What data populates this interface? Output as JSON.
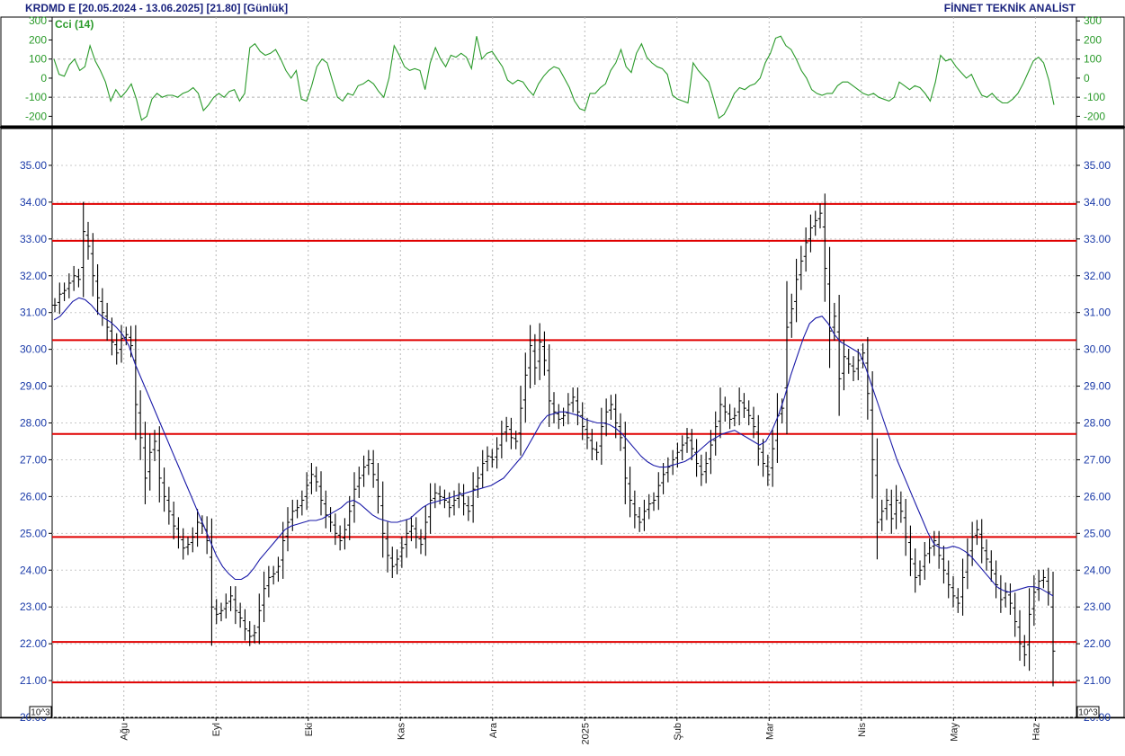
{
  "header": {
    "left_title": "KRDMD E  [20.05.2024 - 13.06.2025]  [21.80]  [Günlük]",
    "right_title": "FİNNET TEKNİK ANALİST"
  },
  "colors": {
    "price_bars": "#000000",
    "moving_average": "#1a1aa8",
    "cci_line": "#2a9a2a",
    "horizontal_levels": "#e00000",
    "axis_labels": "#1a3aa8"
  },
  "chart_data": [
    {
      "type": "line",
      "title": "",
      "legend": [
        "Cci (14)"
      ],
      "ylim": [
        -250,
        320
      ],
      "yticks": [
        "300",
        "200",
        "100",
        "0",
        "-100",
        "-200"
      ],
      "ytick_values": [
        300,
        200,
        100,
        0,
        -100,
        -200
      ],
      "grid": true,
      "series": [
        {
          "name": "Cci (14)",
          "values": [
            100,
            20,
            10,
            70,
            100,
            40,
            60,
            170,
            90,
            40,
            -20,
            -120,
            -60,
            -100,
            -70,
            -30,
            -110,
            -220,
            -200,
            -110,
            -80,
            -100,
            -90,
            -90,
            -100,
            -80,
            -70,
            -50,
            -80,
            -170,
            -140,
            -100,
            -80,
            -100,
            -70,
            -60,
            -120,
            -80,
            160,
            180,
            140,
            120,
            130,
            150,
            100,
            40,
            0,
            40,
            -110,
            -120,
            -40,
            60,
            100,
            80,
            -10,
            -100,
            -120,
            -80,
            -90,
            -40,
            -30,
            -10,
            -30,
            -70,
            -100,
            0,
            170,
            120,
            60,
            40,
            50,
            40,
            -60,
            80,
            160,
            100,
            60,
            120,
            110,
            130,
            110,
            50,
            220,
            100,
            130,
            140,
            100,
            60,
            -10,
            -30,
            -10,
            -20,
            -60,
            -90,
            -30,
            10,
            40,
            60,
            50,
            0,
            -50,
            -120,
            -160,
            -170,
            -80,
            -80,
            -50,
            -30,
            40,
            80,
            150,
            60,
            30,
            130,
            180,
            110,
            80,
            60,
            50,
            20,
            -90,
            -110,
            -120,
            -130,
            80,
            40,
            10,
            -20,
            -110,
            -210,
            -190,
            -140,
            -80,
            -50,
            -60,
            -40,
            -30,
            0,
            80,
            130,
            210,
            220,
            170,
            150,
            100,
            40,
            0,
            -60,
            -80,
            -90,
            -80,
            -80,
            -40,
            -20,
            -20,
            -40,
            -60,
            -80,
            -90,
            -80,
            -100,
            -110,
            -120,
            -100,
            -20,
            -40,
            -60,
            -40,
            -50,
            -80,
            -120,
            -20,
            120,
            90,
            100,
            60,
            30,
            0,
            20,
            -40,
            -90,
            -100,
            -80,
            -110,
            -130,
            -130,
            -110,
            -80,
            -30,
            30,
            90,
            110,
            80,
            -10,
            -140
          ]
        }
      ]
    },
    {
      "type": "ohlc",
      "title": "",
      "ylim": [
        20,
        36
      ],
      "yticks": [
        "35.00",
        "34.00",
        "33.00",
        "32.00",
        "31.00",
        "30.00",
        "29.00",
        "28.00",
        "27.00",
        "26.00",
        "25.00",
        "24.00",
        "23.00",
        "22.00",
        "21.00",
        "20.00"
      ],
      "ytick_values": [
        35,
        34,
        33,
        32,
        31,
        30,
        29,
        28,
        27,
        26,
        25,
        24,
        23,
        22,
        21,
        20
      ],
      "scale_label": "10^3",
      "x_range": [
        "20.05.2024",
        "13.06.2025"
      ],
      "xticks": [
        "Ağu",
        "Eyl",
        "Eki",
        "Kas",
        "Ara",
        "2025",
        "Şub",
        "Mar",
        "Nis",
        "May",
        "Haz"
      ],
      "horizontal_levels": [
        33.95,
        32.95,
        30.25,
        27.7,
        24.9,
        22.05,
        20.95
      ],
      "grid": true,
      "series": [
        {
          "name": "Close",
          "values": [
            31.2,
            31.5,
            31.6,
            31.8,
            32.0,
            31.9,
            33.2,
            32.8,
            32.0,
            31.4,
            31.0,
            30.6,
            30.2,
            29.9,
            30.3,
            30.4,
            30.1,
            28.5,
            27.6,
            26.5,
            27.2,
            27.5,
            26.5,
            26.0,
            25.6,
            25.2,
            24.9,
            24.6,
            24.7,
            24.9,
            25.3,
            25.2,
            24.8,
            23.0,
            22.8,
            22.9,
            23.1,
            23.3,
            22.9,
            22.7,
            22.4,
            22.2,
            22.3,
            22.9,
            23.5,
            23.8,
            23.9,
            24.1,
            24.8,
            25.3,
            25.6,
            25.7,
            25.9,
            26.3,
            26.6,
            26.4,
            25.9,
            25.5,
            25.3,
            25.0,
            24.8,
            25.1,
            25.6,
            26.2,
            26.5,
            26.8,
            27.0,
            26.6,
            26.0,
            25.0,
            24.4,
            24.1,
            24.3,
            24.6,
            25.0,
            25.2,
            24.9,
            24.7,
            25.3,
            25.9,
            26.1,
            26.0,
            25.9,
            25.7,
            25.9,
            26.1,
            25.8,
            25.6,
            26.2,
            26.5,
            26.9,
            27.1,
            27.0,
            27.3,
            27.7,
            27.9,
            27.6,
            27.5,
            28.4,
            29.3,
            30.1,
            29.5,
            30.2,
            29.7,
            28.6,
            28.3,
            28.1,
            28.2,
            28.5,
            28.7,
            28.3,
            27.9,
            27.6,
            27.3,
            27.2,
            27.9,
            28.3,
            28.5,
            28.0,
            27.6,
            26.5,
            25.9,
            25.5,
            25.3,
            25.6,
            25.8,
            25.9,
            26.3,
            26.6,
            26.8,
            27.0,
            27.2,
            27.4,
            27.6,
            27.3,
            26.9,
            26.6,
            26.9,
            27.4,
            27.9,
            28.5,
            28.3,
            28.1,
            28.2,
            28.6,
            28.4,
            28.2,
            27.9,
            27.3,
            26.9,
            26.6,
            27.3,
            28.2,
            28.4,
            30.6,
            31.1,
            31.9,
            32.4,
            32.9,
            33.3,
            33.5,
            33.7,
            32.2,
            30.5,
            30.9,
            29.2,
            29.8,
            29.6,
            29.4,
            29.7,
            29.9,
            28.8,
            27.0,
            25.3,
            25.6,
            25.9,
            25.4,
            25.9,
            25.6,
            24.9,
            24.3,
            23.8,
            24.0,
            24.4,
            24.6,
            24.8,
            24.4,
            24.0,
            23.6,
            23.3,
            23.1,
            23.8,
            24.4,
            24.9,
            25.1,
            24.6,
            24.3,
            24.0,
            23.6,
            23.2,
            23.4,
            23.1,
            22.6,
            22.0,
            21.7,
            22.8,
            23.4,
            23.7,
            23.8,
            23.4,
            21.8
          ]
        },
        {
          "name": "MA",
          "values": [
            30.8,
            30.9,
            31.1,
            31.3,
            31.4,
            31.35,
            31.2,
            31.0,
            30.85,
            30.75,
            30.6,
            30.4,
            30.1,
            29.6,
            29.2,
            28.8,
            28.4,
            28.0,
            27.6,
            27.2,
            26.8,
            26.4,
            26.0,
            25.6,
            25.2,
            24.8,
            24.4,
            24.1,
            23.9,
            23.75,
            23.75,
            23.85,
            24.05,
            24.3,
            24.5,
            24.7,
            24.9,
            25.1,
            25.2,
            25.25,
            25.3,
            25.35,
            25.35,
            25.4,
            25.5,
            25.6,
            25.7,
            25.85,
            25.9,
            25.8,
            25.65,
            25.5,
            25.4,
            25.35,
            25.3,
            25.3,
            25.35,
            25.4,
            25.55,
            25.7,
            25.8,
            25.85,
            25.9,
            25.95,
            26.0,
            26.05,
            26.1,
            26.15,
            26.2,
            26.25,
            26.3,
            26.4,
            26.5,
            26.7,
            26.9,
            27.1,
            27.4,
            27.7,
            28.0,
            28.2,
            28.25,
            28.3,
            28.3,
            28.25,
            28.2,
            28.1,
            28.05,
            28.0,
            28.0,
            27.95,
            27.85,
            27.7,
            27.5,
            27.3,
            27.1,
            26.95,
            26.85,
            26.8,
            26.8,
            26.85,
            26.9,
            26.95,
            27.05,
            27.2,
            27.35,
            27.5,
            27.6,
            27.7,
            27.75,
            27.8,
            27.7,
            27.6,
            27.5,
            27.4,
            27.5,
            27.8,
            28.2,
            28.7,
            29.3,
            29.8,
            30.3,
            30.7,
            30.85,
            30.9,
            30.7,
            30.4,
            30.2,
            30.1,
            30.0,
            29.9,
            29.5,
            29.0,
            28.5,
            28.0,
            27.5,
            27.0,
            26.6,
            26.2,
            25.8,
            25.4,
            25.0,
            24.7,
            24.6,
            24.6,
            24.65,
            24.6,
            24.5,
            24.35,
            24.15,
            23.95,
            23.75,
            23.55,
            23.45,
            23.4,
            23.45,
            23.5,
            23.55,
            23.55,
            23.5,
            23.4,
            23.3
          ]
        }
      ]
    }
  ]
}
